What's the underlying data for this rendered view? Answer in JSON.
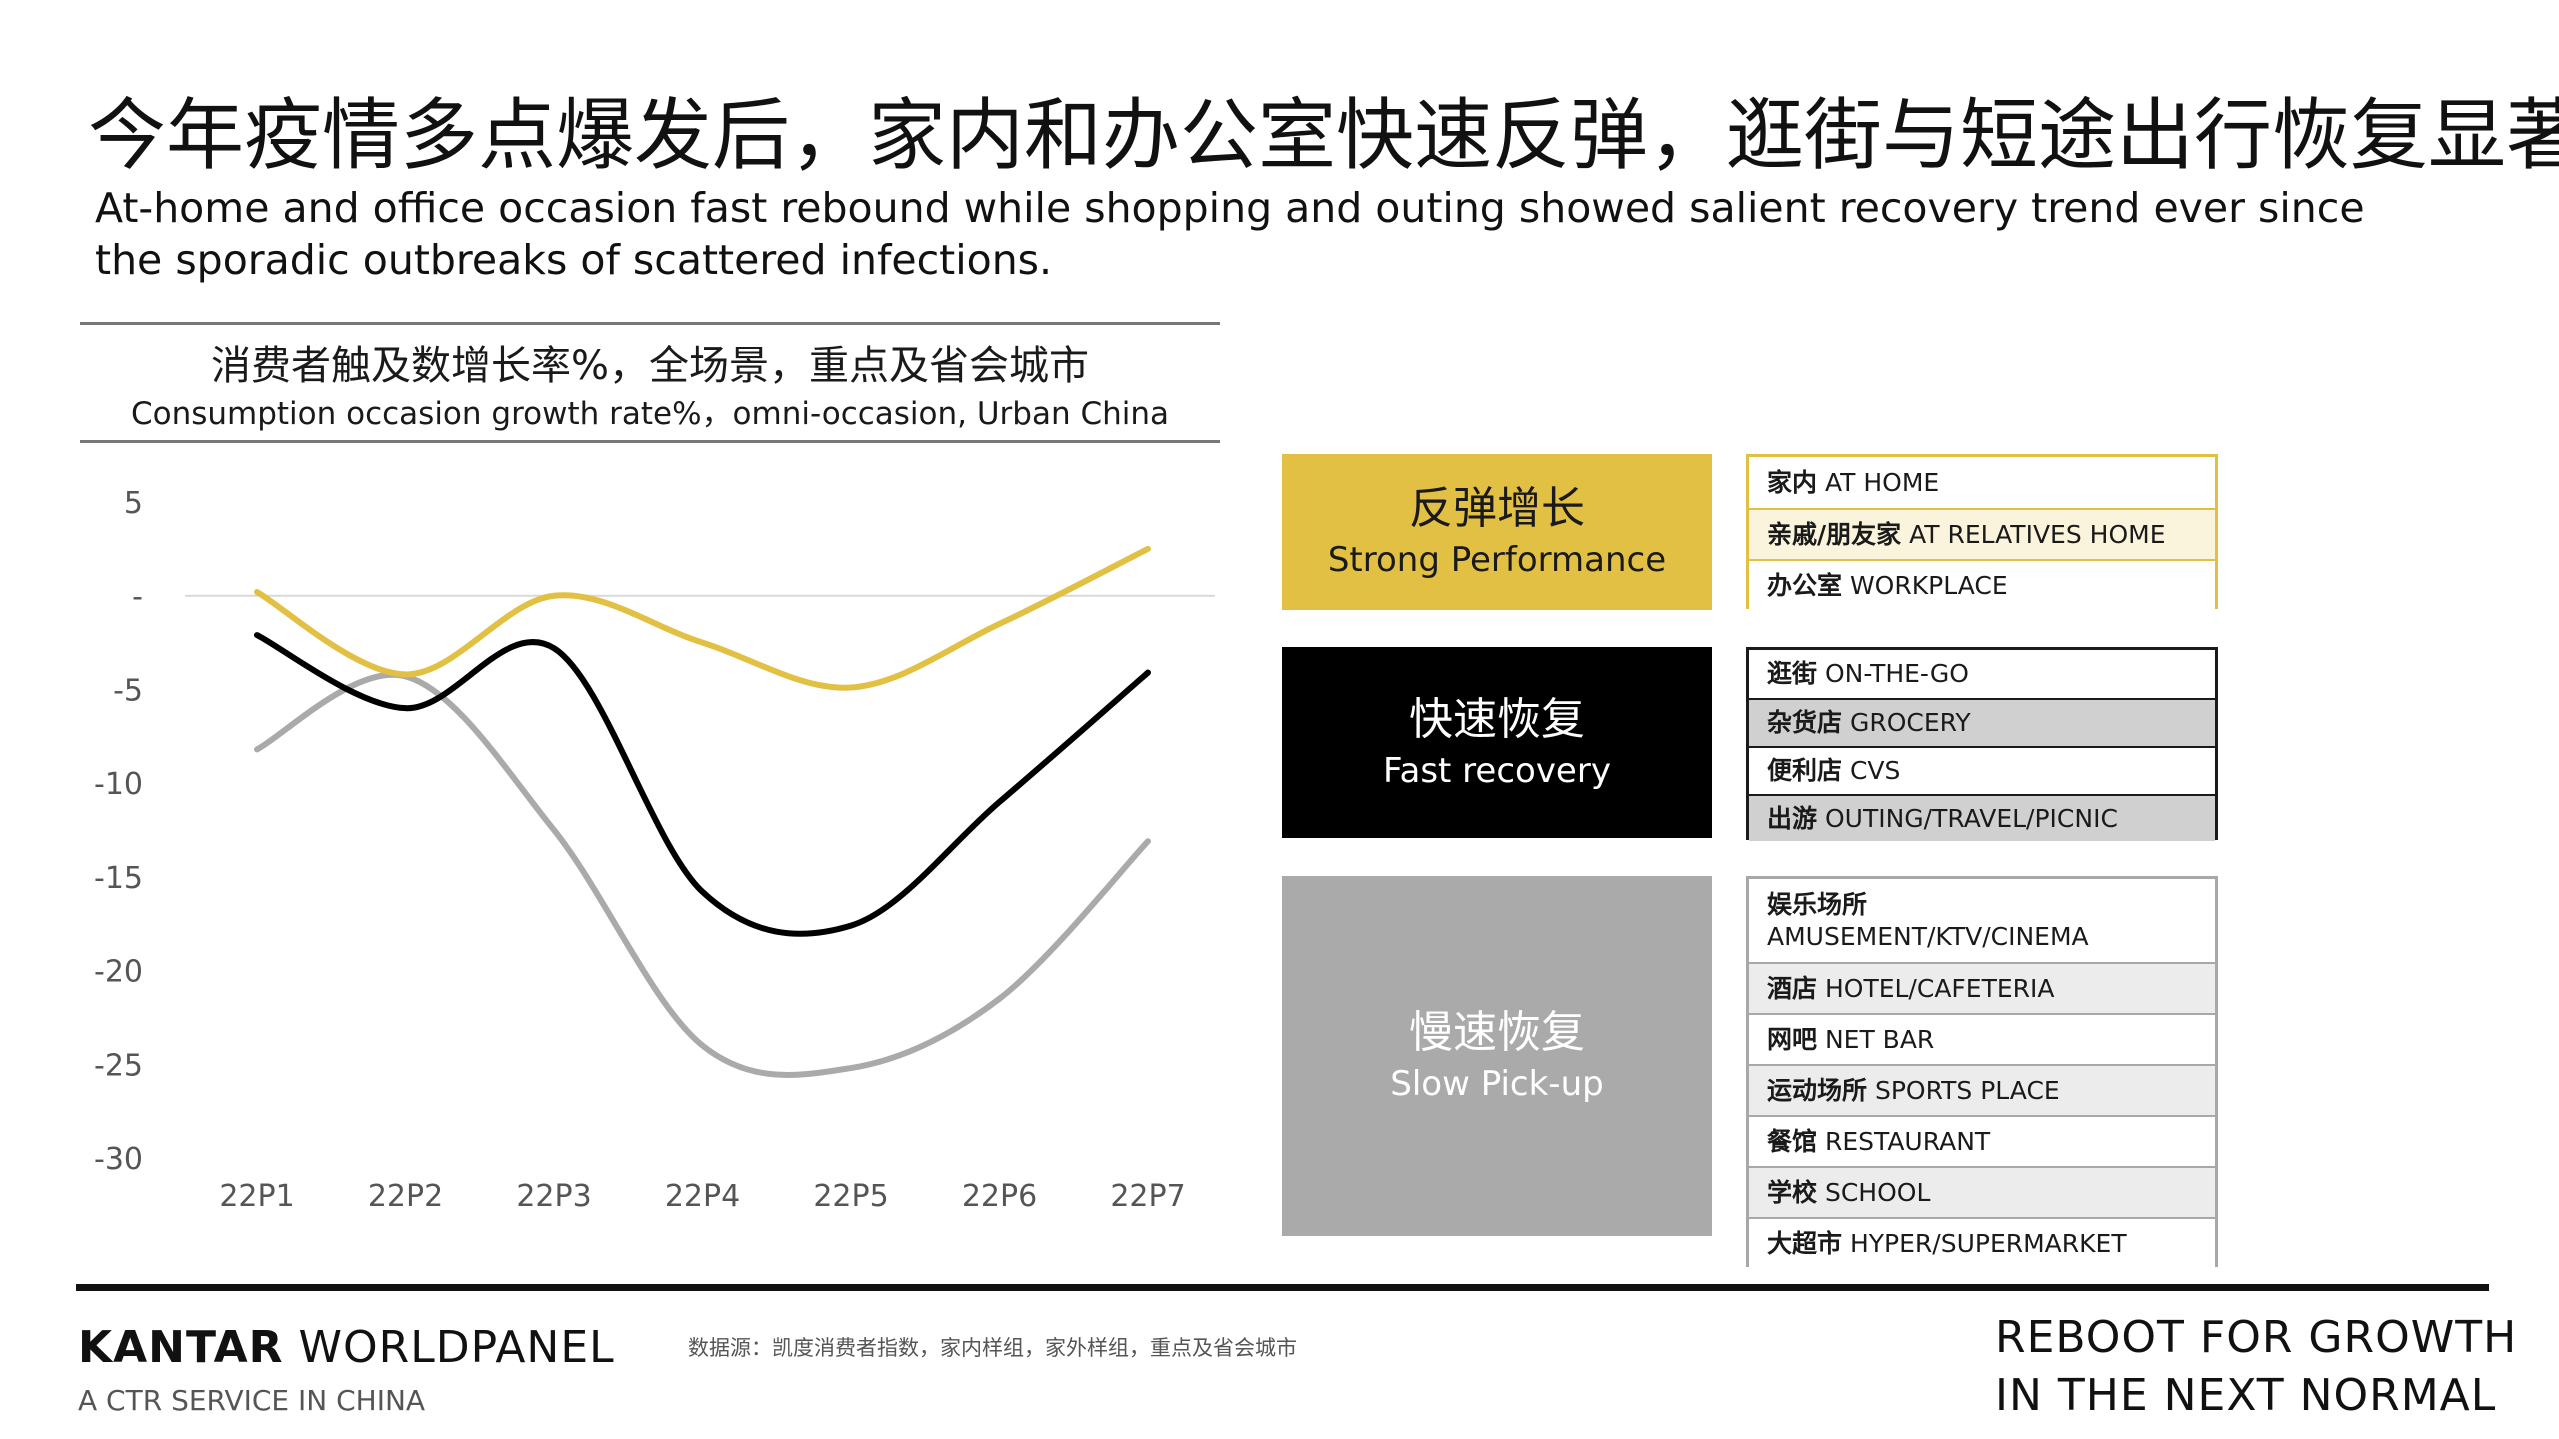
{
  "header": {
    "title_cn": "今年疫情多点爆发后，家内和办公室快速反弹，逛街与短途出行恢复显著",
    "title_en": "At-home and office occasion fast rebound while shopping and outing showed salient recovery trend ever since the sporadic outbreaks of scattered infections."
  },
  "chart_data": {
    "type": "line",
    "title": "消费者触及数增长率%，全场景，重点及省会城市",
    "subtitle": "Consumption occasion growth rate%，omni-occasion, Urban China",
    "categories": [
      "22P1",
      "22P2",
      "22P3",
      "22P4",
      "22P5",
      "22P6",
      "22P7"
    ],
    "y_ticks": [
      "5",
      "-",
      "-5",
      "-10",
      "-15",
      "-20",
      "-25",
      "-30"
    ],
    "ylim": [
      -30,
      5
    ],
    "grid": false,
    "zero_line": true,
    "series": [
      {
        "color": "#e2c044",
        "values": [
          0.2,
          -4.2,
          0.0,
          -2.5,
          -4.9,
          -1.5,
          2.5
        ]
      },
      {
        "color": "#000000",
        "values": [
          -2.1,
          -6.0,
          -2.8,
          -15.8,
          -17.6,
          -11.0,
          -4.1
        ]
      },
      {
        "color": "#aaaaaa",
        "values": [
          -8.2,
          -4.3,
          -12.5,
          -24.0,
          -25.2,
          -21.5,
          -13.1
        ]
      }
    ]
  },
  "groups": [
    {
      "name_cn": "反弹增长",
      "name_en": "Strong Performance",
      "bg": "#e2c044",
      "fg": "#1a1a1a",
      "border": "#e2c044",
      "items": [
        {
          "cn": "家内",
          "en": "AT HOME",
          "bg": "#ffffff"
        },
        {
          "cn": "亲戚/朋友家",
          "en": "AT RELATIVES HOME",
          "bg": "#fbf4dc"
        },
        {
          "cn": "办公室",
          "en": "WORKPLACE",
          "bg": "#ffffff"
        }
      ]
    },
    {
      "name_cn": "快速恢复",
      "name_en": "Fast recovery",
      "bg": "#000000",
      "fg": "#ffffff",
      "border": "#1a1a1a",
      "items": [
        {
          "cn": "逛街",
          "en": "ON-THE-GO",
          "bg": "#ffffff"
        },
        {
          "cn": "杂货店",
          "en": "GROCERY",
          "bg": "#d0d0d0"
        },
        {
          "cn": "便利店",
          "en": "CVS",
          "bg": "#ffffff"
        },
        {
          "cn": "出游",
          "en": "OUTING/TRAVEL/PICNIC",
          "bg": "#d0d0d0"
        }
      ]
    },
    {
      "name_cn": "慢速恢复",
      "name_en": "Slow Pick-up",
      "bg": "#aaaaaa",
      "fg": "#ffffff",
      "border": "#a8a8a8",
      "items": [
        {
          "cn": "娱乐场所",
          "en": "AMUSEMENT/KTV/CINEMA",
          "bg": "#ffffff",
          "two_line": true
        },
        {
          "cn": "酒店",
          "en": "HOTEL/CAFETERIA",
          "bg": "#ececec"
        },
        {
          "cn": "网吧",
          "en": "NET BAR",
          "bg": "#ffffff"
        },
        {
          "cn": "运动场所",
          "en": "SPORTS PLACE",
          "bg": "#ececec"
        },
        {
          "cn": "餐馆",
          "en": "RESTAURANT",
          "bg": "#ffffff"
        },
        {
          "cn": "学校",
          "en": "SCHOOL",
          "bg": "#ececec"
        },
        {
          "cn": "大超市",
          "en": "HYPER/SUPERMARKET",
          "bg": "#ffffff"
        }
      ]
    }
  ],
  "footer": {
    "brand_bold": "KANTAR",
    "brand_rest": " WORLDPANEL",
    "brand_sub": "A CTR SERVICE IN CHINA",
    "source": "数据源：凯度消费者指数，家内样组，家外样组，重点及省会城市",
    "tagline_1": "REBOOT FOR GROWTH",
    "tagline_2": "IN THE NEXT NORMAL"
  }
}
